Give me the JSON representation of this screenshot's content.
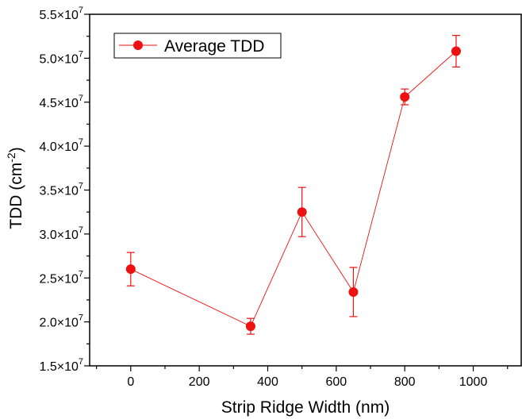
{
  "chart_data": {
    "type": "scatter",
    "xlabel": "Strip Ridge Width (nm)",
    "ylabel": {
      "base": "TDD (cm",
      "exponent": "-2",
      "suffix": ")"
    },
    "xlim": [
      -120,
      1140
    ],
    "ylim": [
      15000000,
      55000000
    ],
    "x_ticks": [
      0,
      200,
      400,
      600,
      800,
      1000
    ],
    "x_tick_labels": [
      "0",
      "200",
      "400",
      "600",
      "800",
      "1000"
    ],
    "y_ticks": [
      15000000,
      20000000,
      25000000,
      30000000,
      35000000,
      40000000,
      45000000,
      50000000,
      55000000
    ],
    "y_tick_labels": [
      {
        "mantissa": "1.5×10",
        "exponent": "7"
      },
      {
        "mantissa": "2.0×10",
        "exponent": "7"
      },
      {
        "mantissa": "2.5×10",
        "exponent": "7"
      },
      {
        "mantissa": "3.0×10",
        "exponent": "7"
      },
      {
        "mantissa": "3.5×10",
        "exponent": "7"
      },
      {
        "mantissa": "4.0×10",
        "exponent": "7"
      },
      {
        "mantissa": "4.5×10",
        "exponent": "7"
      },
      {
        "mantissa": "5.0×10",
        "exponent": "7"
      },
      {
        "mantissa": "5.5×10",
        "exponent": "7"
      }
    ],
    "grid": false,
    "legend_position": "top-left",
    "series": [
      {
        "name": "Average TDD",
        "color": "#ee1111",
        "x": [
          0,
          350,
          500,
          650,
          800,
          950
        ],
        "y": [
          26000000,
          19500000,
          32500000,
          23400000,
          45600000,
          50800000
        ],
        "error": [
          1900000,
          900000,
          2800000,
          2800000,
          900000,
          1800000
        ]
      }
    ]
  }
}
